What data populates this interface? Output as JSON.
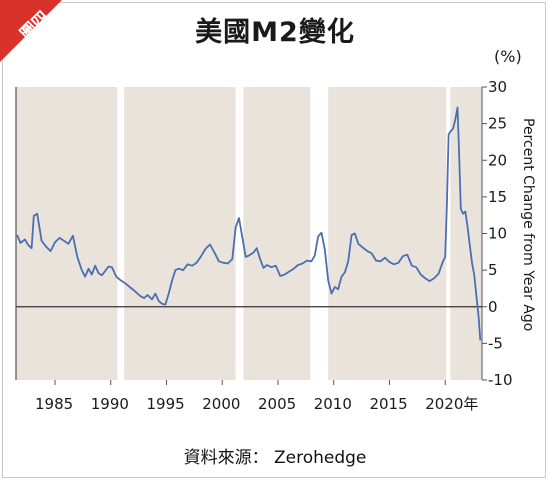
{
  "badge": {
    "label": "圖四"
  },
  "source": {
    "text": "資料來源： Zerohedge"
  },
  "chart_data": {
    "type": "line",
    "title": "美國M2變化",
    "ylabel": "Percent Change from Year Ago",
    "yunit": "(%)",
    "ylim": [
      -10,
      30
    ],
    "yticks": [
      "30",
      "25",
      "20",
      "15",
      "10",
      "5",
      "0",
      "-5",
      "-10"
    ],
    "xlim": [
      1981.5,
      2023.3
    ],
    "xticks": [
      "1985",
      "1990",
      "1995",
      "2000",
      "2005",
      "2010",
      "2015",
      "2020年"
    ],
    "recessions": [
      [
        1990.6,
        1991.2
      ],
      [
        2001.2,
        2001.9
      ],
      [
        2007.9,
        2009.5
      ],
      [
        2020.1,
        2020.3
      ]
    ],
    "colors": {
      "line": "#4a6fb0",
      "band": "#e9e3dc",
      "zero": "#333333"
    },
    "series": [
      {
        "x": [
          1981.6,
          1981.9,
          1982.3,
          1982.6,
          1982.9,
          1983.1,
          1983.4,
          1983.8,
          1984.2,
          1984.6,
          1985.0,
          1985.4,
          1985.8,
          1986.2,
          1986.6,
          1987.0,
          1987.4,
          1987.7,
          1988.0,
          1988.3,
          1988.6,
          1988.9,
          1989.2,
          1989.5,
          1989.8,
          1990.1,
          1990.5,
          1990.9,
          1991.3,
          1991.7,
          1992.1,
          1992.4,
          1992.7,
          1993.0,
          1993.3,
          1993.7,
          1994.0,
          1994.3,
          1994.6,
          1994.9,
          1995.2,
          1995.5,
          1995.8,
          1996.1,
          1996.5,
          1996.9,
          1997.3,
          1997.7,
          1998.1,
          1998.5,
          1998.9,
          1999.3,
          1999.7,
          2000.1,
          2000.5,
          2000.9,
          2001.2,
          2001.5,
          2001.8,
          2002.1,
          2002.4,
          2002.8,
          2003.1,
          2003.4,
          2003.7,
          2004.0,
          2004.4,
          2004.8,
          2005.2,
          2005.6,
          2006.0,
          2006.4,
          2006.8,
          2007.2,
          2007.6,
          2008.0,
          2008.3,
          2008.6,
          2008.9,
          2009.2,
          2009.5,
          2009.8,
          2010.1,
          2010.4,
          2010.7,
          2011.0,
          2011.3,
          2011.6,
          2011.9,
          2012.2,
          2012.6,
          2013.0,
          2013.4,
          2013.8,
          2014.2,
          2014.6,
          2015.0,
          2015.4,
          2015.8,
          2016.2,
          2016.6,
          2017.0,
          2017.4,
          2017.8,
          2018.2,
          2018.6,
          2019.0,
          2019.4,
          2019.8,
          2020.0,
          2020.15,
          2020.3,
          2020.5,
          2020.7,
          2020.9,
          2021.1,
          2021.25,
          2021.4,
          2021.6,
          2021.8,
          2022.0,
          2022.2,
          2022.4,
          2022.6,
          2022.8,
          2023.0,
          2023.15
        ],
        "y": [
          9.8,
          8.7,
          9.2,
          8.4,
          8.0,
          12.4,
          12.7,
          9.0,
          8.2,
          7.6,
          8.8,
          9.4,
          9.0,
          8.6,
          9.7,
          6.8,
          5.0,
          4.1,
          5.2,
          4.4,
          5.6,
          4.6,
          4.3,
          4.9,
          5.5,
          5.4,
          4.1,
          3.6,
          3.2,
          2.7,
          2.2,
          1.8,
          1.4,
          1.2,
          1.6,
          1.0,
          1.8,
          0.8,
          0.4,
          0.3,
          1.8,
          3.6,
          5.0,
          5.2,
          5.0,
          5.8,
          5.6,
          6.0,
          6.9,
          7.9,
          8.5,
          7.4,
          6.2,
          6.0,
          5.9,
          6.5,
          10.8,
          12.1,
          9.5,
          6.8,
          7.0,
          7.4,
          8.0,
          6.5,
          5.3,
          5.7,
          5.4,
          5.6,
          4.2,
          4.4,
          4.8,
          5.2,
          5.7,
          5.9,
          6.3,
          6.2,
          7.0,
          9.6,
          10.1,
          7.8,
          3.6,
          1.8,
          2.7,
          2.4,
          4.1,
          4.7,
          6.2,
          9.8,
          10.0,
          8.6,
          8.1,
          7.6,
          7.3,
          6.3,
          6.2,
          6.7,
          6.1,
          5.8,
          6.0,
          6.9,
          7.1,
          5.6,
          5.4,
          4.4,
          3.9,
          3.5,
          3.9,
          4.5,
          6.2,
          6.8,
          14.0,
          23.5,
          24.0,
          24.3,
          25.5,
          27.2,
          21.0,
          13.4,
          12.7,
          13.0,
          11.0,
          8.5,
          6.0,
          4.4,
          1.5,
          -1.5,
          -4.6
        ]
      }
    ]
  }
}
